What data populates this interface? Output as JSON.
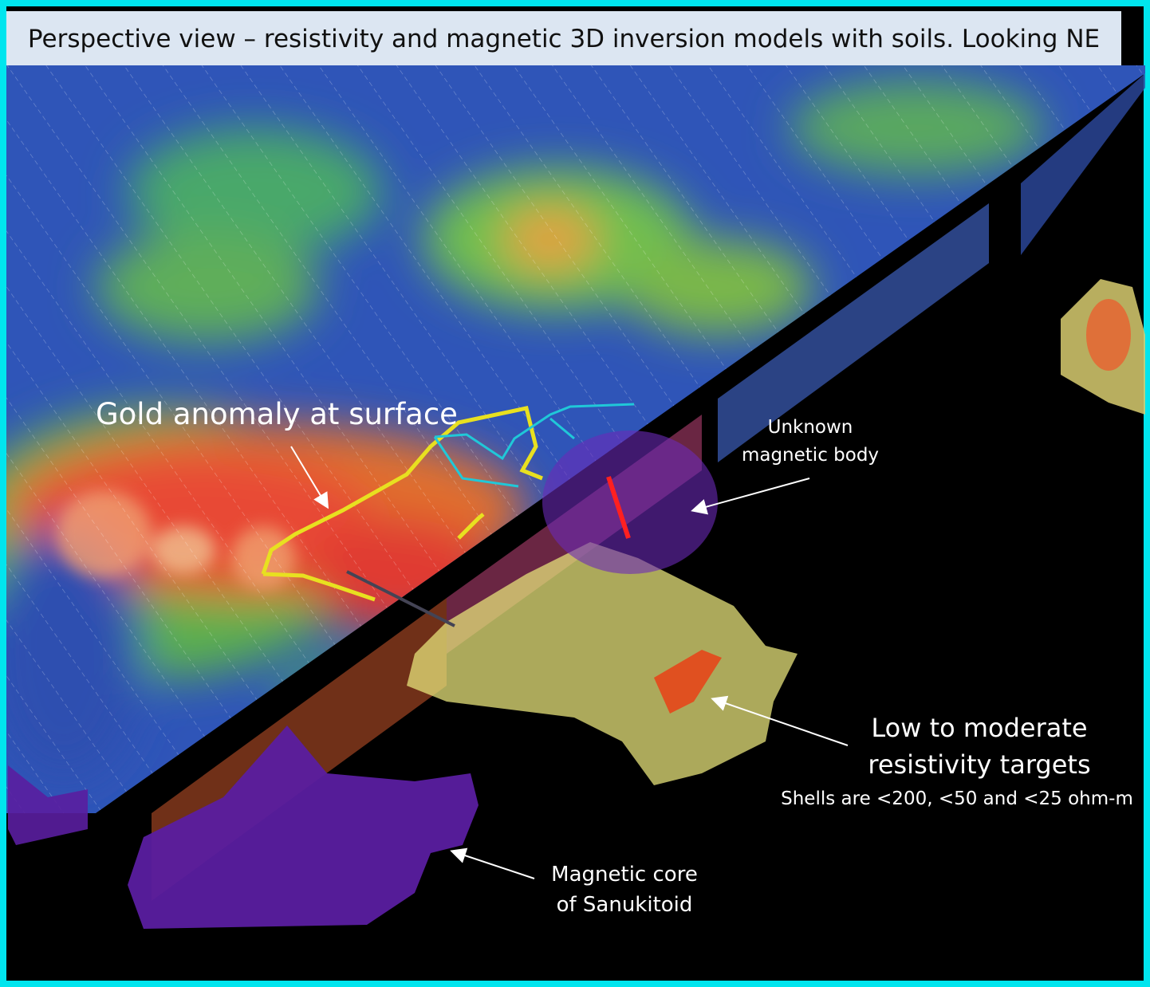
{
  "header": {
    "title": "Perspective view – resistivity and magnetic 3D inversion models with soils. Looking NE"
  },
  "annotations": {
    "gold": "Gold anomaly at surface",
    "magnetic_body": [
      "Unknown",
      "magnetic body"
    ],
    "resistivity": [
      "Low to moderate",
      "resistivity targets"
    ],
    "shells": "Shells are <200, <50 and <25 ohm-m",
    "magnetic_core": [
      "Magnetic core",
      "of Sanukitoid"
    ]
  }
}
